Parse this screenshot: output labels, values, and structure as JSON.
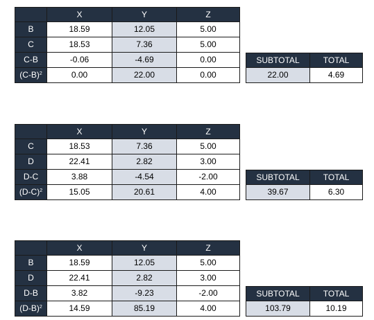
{
  "tables": [
    {
      "headers": [
        "X",
        "Y",
        "Z"
      ],
      "rows": [
        {
          "label": "B",
          "x": "18.59",
          "y": "12.05",
          "z": "5.00"
        },
        {
          "label": "C",
          "x": "18.53",
          "y": "7.36",
          "z": "5.00"
        },
        {
          "label": "C-B",
          "x": "-0.06",
          "y": "-4.69",
          "z": "0.00"
        },
        {
          "label": "(C-B)",
          "sup": "2",
          "x": "0.00",
          "y": "22.00",
          "z": "0.00"
        }
      ],
      "subtotal_label": "SUBTOTAL",
      "total_label": "TOTAL",
      "subtotal": "22.00",
      "total": "4.69"
    },
    {
      "headers": [
        "X",
        "Y",
        "Z"
      ],
      "rows": [
        {
          "label": "C",
          "x": "18.53",
          "y": "7.36",
          "z": "5.00"
        },
        {
          "label": "D",
          "x": "22.41",
          "y": "2.82",
          "z": "3.00"
        },
        {
          "label": "D-C",
          "x": "3.88",
          "y": "-4.54",
          "z": "-2.00"
        },
        {
          "label": "(D-C)",
          "sup": "2",
          "x": "15.05",
          "y": "20.61",
          "z": "4.00"
        }
      ],
      "subtotal_label": "SUBTOTAL",
      "total_label": "TOTAL",
      "subtotal": "39.67",
      "total": "6.30"
    },
    {
      "headers": [
        "X",
        "Y",
        "Z"
      ],
      "rows": [
        {
          "label": "B",
          "x": "18.59",
          "y": "12.05",
          "z": "5.00"
        },
        {
          "label": "D",
          "x": "22.41",
          "y": "2.82",
          "z": "3.00"
        },
        {
          "label": "D-B",
          "x": "3.82",
          "y": "-9.23",
          "z": "-2.00"
        },
        {
          "label": "(D-B)",
          "sup": "2",
          "x": "14.59",
          "y": "85.19",
          "z": "4.00"
        }
      ],
      "subtotal_label": "SUBTOTAL",
      "total_label": "TOTAL",
      "subtotal": "103.79",
      "total": "10.19"
    }
  ],
  "colors": {
    "header_dark": "#243142",
    "shade": "#d8dde6",
    "border": "#1a1a1a"
  }
}
